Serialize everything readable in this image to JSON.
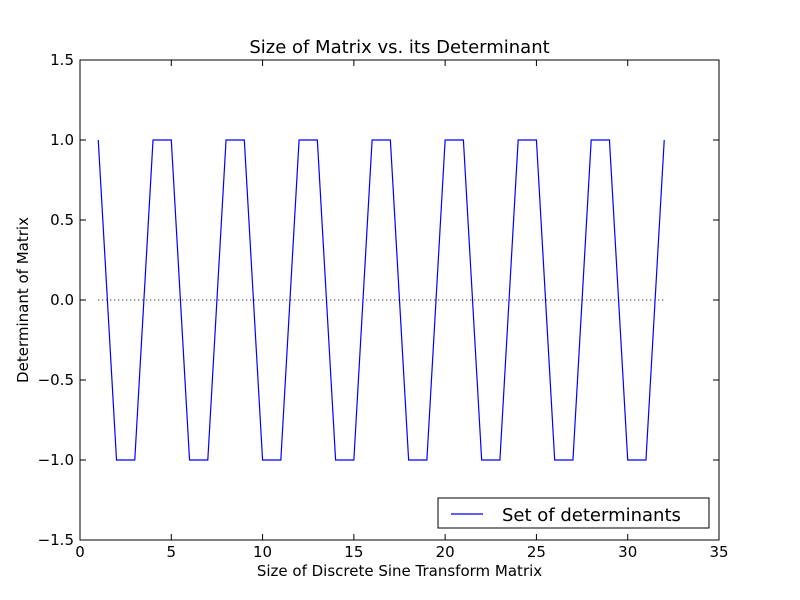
{
  "chart_data": {
    "type": "line",
    "title": "Size of Matrix vs. its Determinant",
    "xlabel": "Size of Discrete Sine Transform Matrix",
    "ylabel": "Determinant of Matrix",
    "xlim": [
      0,
      35
    ],
    "ylim": [
      -1.5,
      1.5
    ],
    "xticks": [
      0,
      5,
      10,
      15,
      20,
      25,
      30,
      35
    ],
    "xtick_labels": [
      "0",
      "5",
      "10",
      "15",
      "20",
      "25",
      "30",
      "35"
    ],
    "yticks": [
      -1.5,
      -1.0,
      -0.5,
      0.0,
      0.5,
      1.0,
      1.5
    ],
    "ytick_labels": [
      "−1.5",
      "−1.0",
      "−0.5",
      "0.0",
      "0.5",
      "1.0",
      "1.5"
    ],
    "grid": false,
    "legend_position": "lower-right",
    "series": [
      {
        "name": "Set of determinants",
        "color": "#0000ff",
        "style": "solid",
        "x": [
          1,
          2,
          3,
          4,
          5,
          6,
          7,
          8,
          9,
          10,
          11,
          12,
          13,
          14,
          15,
          16,
          17,
          18,
          19,
          20,
          21,
          22,
          23,
          24,
          25,
          26,
          27,
          28,
          29,
          30,
          31,
          32
        ],
        "y": [
          1,
          -1,
          -1,
          1,
          1,
          -1,
          -1,
          1,
          1,
          -1,
          -1,
          1,
          1,
          -1,
          -1,
          1,
          1,
          -1,
          -1,
          1,
          1,
          -1,
          -1,
          1,
          1,
          -1,
          -1,
          1,
          1,
          -1,
          -1,
          1
        ]
      }
    ],
    "reference_line": {
      "y": 0,
      "x_range": [
        1,
        32
      ],
      "color": "#000000",
      "style": "dotted"
    }
  }
}
